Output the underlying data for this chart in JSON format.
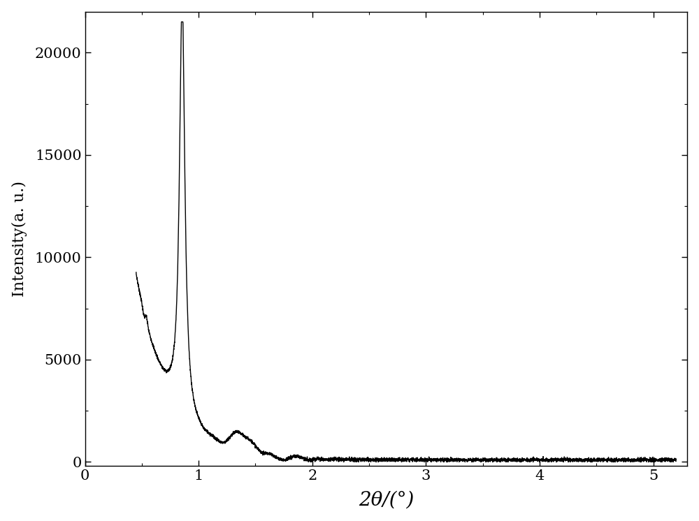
{
  "xlabel": "2θ/(°)",
  "ylabel": "Intensity(a. u.)",
  "xlim": [
    0,
    5.3
  ],
  "ylim": [
    -200,
    22000
  ],
  "xticks": [
    0,
    1,
    2,
    3,
    4,
    5
  ],
  "yticks": [
    0,
    5000,
    10000,
    15000,
    20000
  ],
  "line_color": "#000000",
  "line_width": 1.0,
  "background_color": "#ffffff",
  "figsize": [
    10.0,
    7.46
  ],
  "dpi": 100
}
